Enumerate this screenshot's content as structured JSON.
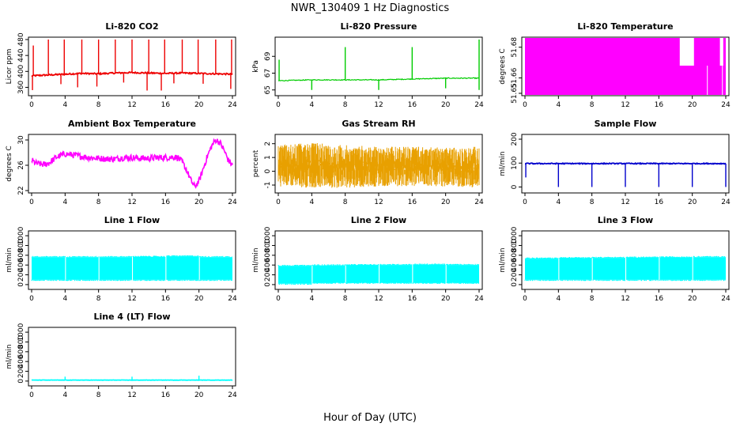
{
  "page_title": "NWR_130409  1 Hz Diagnostics",
  "x_axis_label": "Hour of Day (UTC)",
  "chart_data": [
    {
      "id": "co2",
      "type": "line",
      "title": "Li-820 CO2",
      "ylabel": "Licor ppm",
      "color": "#ee0000",
      "xlim": [
        0,
        24
      ],
      "ylim": [
        345,
        480
      ],
      "xticks": [
        0,
        4,
        8,
        12,
        16,
        20,
        24
      ],
      "yticks": [
        360,
        400,
        440,
        480
      ],
      "series": [
        {
          "x": [
            0,
            2,
            4,
            6,
            8,
            10,
            12,
            14,
            16,
            18,
            20,
            22,
            24
          ],
          "y": [
            389,
            391,
            393,
            395,
            394,
            396,
            397,
            396,
            395,
            396,
            395,
            394,
            393
          ]
        }
      ],
      "spikes_up": [
        {
          "x": [
            0.2,
            2,
            3.9,
            6,
            8,
            10,
            12,
            14,
            15.9,
            18,
            19.9,
            22,
            23.9
          ],
          "y": [
            465,
            480,
            480,
            480,
            480,
            480,
            480,
            480,
            480,
            480,
            480,
            480,
            480
          ]
        }
      ],
      "spikes_down": [
        {
          "x": [
            0.1,
            3.5,
            5.5,
            7.8,
            11,
            13.8,
            15.5,
            17,
            20.5,
            23.8
          ],
          "y": [
            353,
            368,
            360,
            362,
            372,
            352,
            352,
            370,
            369,
            356
          ]
        }
      ]
    },
    {
      "id": "pressure",
      "type": "line",
      "title": "Li-820 Pressure",
      "ylabel": "kPa",
      "color": "#00cc00",
      "xlim": [
        0,
        24
      ],
      "ylim": [
        64.6,
        71
      ],
      "xticks": [
        0,
        4,
        8,
        12,
        16,
        20,
        24
      ],
      "yticks": [
        65,
        67,
        69
      ],
      "series": [
        {
          "x": [
            0,
            4,
            8,
            12,
            16,
            20,
            24
          ],
          "y": [
            66.1,
            66.2,
            66.2,
            66.2,
            66.3,
            66.4,
            66.4
          ]
        }
      ],
      "spikes_up": [
        {
          "x": [
            0.1,
            8,
            16,
            24
          ],
          "y": [
            68.6,
            70.1,
            70.1,
            71
          ]
        }
      ],
      "spikes_down": [
        {
          "x": [
            4,
            12,
            20,
            24
          ],
          "y": [
            65,
            65,
            65.2,
            65
          ]
        }
      ]
    },
    {
      "id": "li_temp",
      "type": "area",
      "title": "Li-820 Temperature",
      "ylabel": "degrees C",
      "color": "#ff00ff",
      "xlim": [
        0,
        24
      ],
      "ylim": [
        51.65,
        51.685
      ],
      "xticks": [
        0,
        4,
        8,
        12,
        16,
        20,
        24
      ],
      "yticks": [
        51.65,
        51.66,
        51.68
      ],
      "ytick_labels": [
        "51.65",
        "51.66",
        "51.68"
      ],
      "gaps": [
        {
          "x0": 18.5,
          "x1": 20.2,
          "top": 51.668
        },
        {
          "x0": 23.3,
          "x1": 23.7,
          "top": 51.668
        }
      ],
      "lines": [
        {
          "x": 21.8,
          "y": 51.668
        },
        {
          "x": 23.6,
          "y": 51.668
        }
      ]
    },
    {
      "id": "box_temp",
      "type": "line",
      "title": "Ambient Box Temperature",
      "ylabel": "degrees C",
      "color": "#ff00ff",
      "xlim": [
        0,
        24
      ],
      "ylim": [
        22,
        30.5
      ],
      "xticks": [
        0,
        4,
        8,
        12,
        16,
        20,
        24
      ],
      "yticks": [
        22,
        26,
        30
      ],
      "series": [
        {
          "x": [
            0,
            0.5,
            1,
            1.5,
            2,
            2.5,
            3,
            4,
            5,
            6,
            7,
            8,
            9,
            10,
            11,
            12,
            13,
            14,
            15,
            16,
            17,
            17.5,
            18,
            18.5,
            19,
            19.5,
            20,
            20.5,
            21,
            21.5,
            22,
            22.5,
            23,
            23.5,
            24
          ],
          "y": [
            26.8,
            26.3,
            26.2,
            26.1,
            26.3,
            26.8,
            27.3,
            27.8,
            27.6,
            27.4,
            27.2,
            27.1,
            27.0,
            27.0,
            27.2,
            27.2,
            27.1,
            27.1,
            27.2,
            27.2,
            27.3,
            27.2,
            26.5,
            25.3,
            23.7,
            22.6,
            23.5,
            25.4,
            27.4,
            29.0,
            30.0,
            29.6,
            28.4,
            26.8,
            26.0
          ]
        }
      ],
      "band": 0.5
    },
    {
      "id": "rh",
      "type": "noise",
      "title": "Gas Stream RH",
      "ylabel": "percent",
      "color": "#e8a000",
      "xlim": [
        0,
        24
      ],
      "ylim": [
        -1.4,
        2.5
      ],
      "xticks": [
        0,
        4,
        8,
        12,
        16,
        20,
        24
      ],
      "yticks": [
        -1,
        0,
        1,
        2
      ],
      "band": [
        {
          "x": [
            0,
            4,
            8,
            12,
            16,
            20,
            24
          ],
          "lo": [
            -1.1,
            -1.2,
            -1.2,
            -1.1,
            -1.1,
            -1.1,
            -1.2
          ],
          "hi": [
            1.9,
            2.1,
            1.9,
            1.8,
            1.8,
            1.7,
            1.8
          ]
        }
      ]
    },
    {
      "id": "sample_flow",
      "type": "line",
      "title": "Sample Flow",
      "ylabel": "ml/min",
      "color": "#0000cc",
      "xlim": [
        0,
        24
      ],
      "ylim": [
        -15,
        210
      ],
      "xticks": [
        0,
        4,
        8,
        12,
        16,
        20,
        24
      ],
      "yticks": [
        0,
        100,
        200
      ],
      "series": [
        {
          "x": [
            0,
            24
          ],
          "y": [
            98,
            98
          ]
        }
      ],
      "spikes_down": [
        {
          "x": [
            0.1,
            4,
            8,
            12,
            16,
            20,
            24
          ],
          "y": [
            40,
            0,
            0,
            0,
            0,
            0,
            0
          ]
        }
      ]
    },
    {
      "id": "line1",
      "type": "block",
      "title": "Line 1 Flow",
      "ylabel": "ml/min",
      "color": "#00ffff",
      "xlim": [
        0,
        24
      ],
      "ylim": [
        -50,
        1050
      ],
      "xticks": [
        0,
        4,
        8,
        12,
        16,
        20,
        24
      ],
      "yticks": [
        0,
        200,
        400,
        600,
        800,
        1000
      ],
      "segments": [
        {
          "x0": 0,
          "x1": 4,
          "lo": 100,
          "hi": 560
        },
        {
          "x0": 4.1,
          "x1": 8,
          "lo": 100,
          "hi": 560
        },
        {
          "x0": 8.1,
          "x1": 12,
          "lo": 100,
          "hi": 560
        },
        {
          "x0": 12.1,
          "x1": 16,
          "lo": 100,
          "hi": 565
        },
        {
          "x0": 16.1,
          "x1": 20,
          "lo": 100,
          "hi": 575
        },
        {
          "x0": 20.1,
          "x1": 24,
          "lo": 100,
          "hi": 560
        }
      ]
    },
    {
      "id": "line2",
      "type": "block",
      "title": "Line 2 Flow",
      "ylabel": "ml/min",
      "color": "#00ffff",
      "xlim": [
        0,
        24
      ],
      "ylim": [
        -50,
        1050
      ],
      "xticks": [
        0,
        4,
        8,
        12,
        16,
        20,
        24
      ],
      "yticks": [
        0,
        200,
        400,
        600,
        800,
        1000
      ],
      "segments": [
        {
          "x0": 0,
          "x1": 4,
          "lo": 20,
          "hi": 380
        },
        {
          "x0": 4.1,
          "x1": 8,
          "lo": 40,
          "hi": 390
        },
        {
          "x0": 8.1,
          "x1": 12,
          "lo": 40,
          "hi": 395
        },
        {
          "x0": 12.1,
          "x1": 16,
          "lo": 40,
          "hi": 400
        },
        {
          "x0": 16.1,
          "x1": 20,
          "lo": 40,
          "hi": 405
        },
        {
          "x0": 20.1,
          "x1": 24,
          "lo": 40,
          "hi": 400
        }
      ]
    },
    {
      "id": "line3",
      "type": "block",
      "title": "Line 3 Flow",
      "ylabel": "ml/min",
      "color": "#00ffff",
      "xlim": [
        0,
        24
      ],
      "ylim": [
        -50,
        1050
      ],
      "xticks": [
        0,
        4,
        8,
        12,
        16,
        20,
        24
      ],
      "yticks": [
        0,
        200,
        400,
        600,
        800,
        1000
      ],
      "segments": [
        {
          "x0": 0,
          "x1": 4,
          "lo": 100,
          "hi": 530
        },
        {
          "x0": 4.1,
          "x1": 8,
          "lo": 100,
          "hi": 540
        },
        {
          "x0": 8.1,
          "x1": 12,
          "lo": 100,
          "hi": 545
        },
        {
          "x0": 12.1,
          "x1": 16,
          "lo": 100,
          "hi": 550
        },
        {
          "x0": 16.1,
          "x1": 20,
          "lo": 100,
          "hi": 555
        },
        {
          "x0": 20.1,
          "x1": 24,
          "lo": 100,
          "hi": 560
        }
      ]
    },
    {
      "id": "line4",
      "type": "line",
      "title": "Line 4 (LT) Flow",
      "ylabel": "ml/min",
      "color": "#00ffff",
      "xlim": [
        0,
        24
      ],
      "ylim": [
        -50,
        1050
      ],
      "xticks": [
        0,
        4,
        8,
        12,
        16,
        20,
        24
      ],
      "yticks": [
        0,
        200,
        400,
        600,
        800,
        1000
      ],
      "series": [
        {
          "x": [
            0,
            24
          ],
          "y": [
            20,
            20
          ]
        }
      ],
      "spikes_up": [
        {
          "x": [
            4,
            12,
            20
          ],
          "y": [
            90,
            90,
            110
          ]
        }
      ]
    }
  ]
}
